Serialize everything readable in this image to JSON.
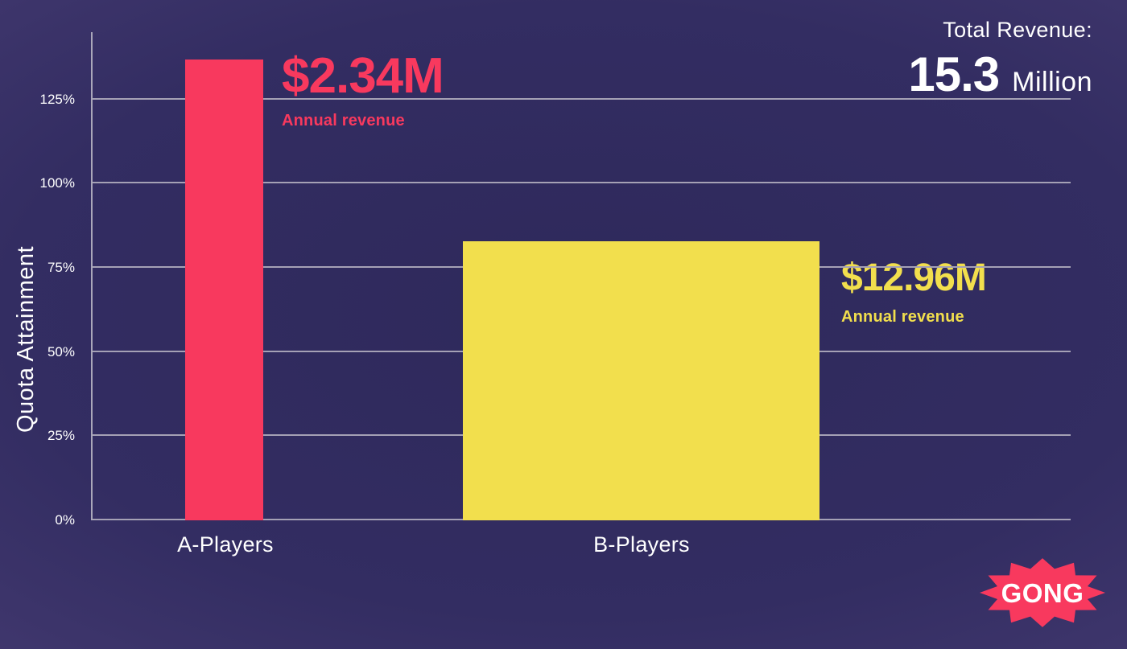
{
  "header": {
    "total_revenue_label": "Total Revenue:",
    "total_revenue_value": "15.3",
    "total_revenue_unit": "Million"
  },
  "logo": {
    "text": "GONG",
    "color": "#f8395e"
  },
  "chart_data": {
    "type": "bar",
    "title": "",
    "ylabel": "Quota Attainment",
    "xlabel": "",
    "unit": "%",
    "categories": [
      "A-Players",
      "B-Players"
    ],
    "values": [
      137,
      83
    ],
    "ylim": [
      0,
      145
    ],
    "yticks": [
      0,
      25,
      50,
      75,
      100,
      125
    ],
    "grid": true,
    "legend": false,
    "bar_colors": [
      "#f8395e",
      "#f2df4d"
    ],
    "annotations": [
      {
        "target": "A-Players",
        "value": "$2.34M",
        "label": "Annual revenue",
        "color": "#f8395e"
      },
      {
        "target": "B-Players",
        "value": "$12.96M",
        "label": "Annual revenue",
        "color": "#f2df4d"
      }
    ],
    "colors": {
      "background_center": "#2e295b",
      "background_edge": "#4e4380",
      "grid": "#a5a1b5",
      "text": "#ffffff"
    }
  }
}
